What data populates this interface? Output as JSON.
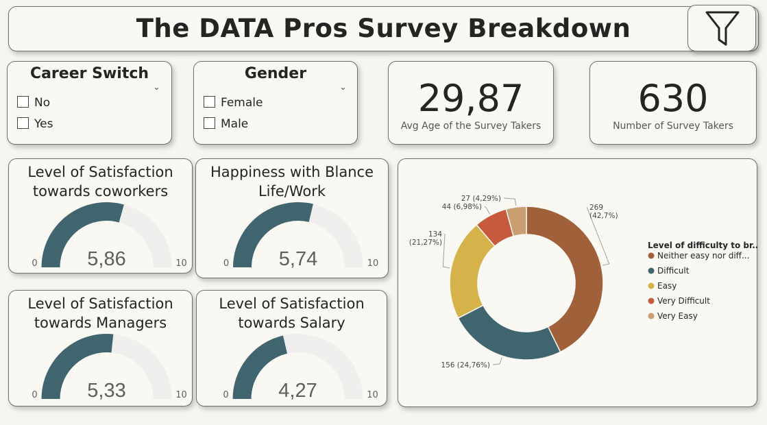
{
  "title": "The DATA Pros Survey Breakdown",
  "filter_icon": "filter-icon",
  "slicers": [
    {
      "title": "Career Switch",
      "options": [
        "No",
        "Yes"
      ]
    },
    {
      "title": "Gender",
      "options": [
        "Female",
        "Male"
      ]
    }
  ],
  "kpis": [
    {
      "value": "29,87",
      "label": "Avg Age of the Survey Takers"
    },
    {
      "value": "630",
      "label": "Number of Survey Takers"
    }
  ],
  "colors": {
    "gauge_fill": "#41656f",
    "gauge_track": "#f0efed",
    "neither": "#a0603a",
    "difficult": "#41656f",
    "easy": "#d6b24b",
    "very_difficult": "#c65a3c",
    "very_easy": "#c99f72"
  },
  "chart_data": [
    {
      "type": "gauge",
      "title": "Level of Satisfaction towards coworkers",
      "title_lines": [
        "Level of Satisfaction",
        "towards coworkers"
      ],
      "value": 5.86,
      "display": "5,86",
      "min": 0,
      "max": 10
    },
    {
      "type": "gauge",
      "title": "Happiness with Blance Life/Work",
      "title_lines": [
        "Happiness with Blance",
        "Life/Work"
      ],
      "value": 5.74,
      "display": "5,74",
      "min": 0,
      "max": 10
    },
    {
      "type": "gauge",
      "title": "Level of Satisfaction towards Managers",
      "title_lines": [
        "Level of Satisfaction",
        "towards Managers"
      ],
      "value": 5.33,
      "display": "5,33",
      "min": 0,
      "max": 10
    },
    {
      "type": "gauge",
      "title": "Level of Satisfaction towards Salary",
      "title_lines": [
        "Level of Satisfaction",
        "towards Salary"
      ],
      "value": 4.27,
      "display": "4,27",
      "min": 0,
      "max": 10
    },
    {
      "type": "pie",
      "legend_title": "Level of difficulty to br...",
      "legend_position": "right",
      "slices": [
        {
          "name": "Neither easy nor diff...",
          "value": 269,
          "label_value": "269",
          "label_pct": "(42,7%)",
          "color": "#a0603a"
        },
        {
          "name": "Difficult",
          "value": 156,
          "label_value": "156",
          "label_pct": "(24,76%)",
          "color": "#41656f"
        },
        {
          "name": "Easy",
          "value": 134,
          "label_value": "134",
          "label_pct": "(21,27%)",
          "color": "#d6b24b"
        },
        {
          "name": "Very Difficult",
          "value": 44,
          "label_value": "44",
          "label_pct": "(6,98%)",
          "color": "#c65a3c"
        },
        {
          "name": "Very Easy",
          "value": 27,
          "label_value": "27",
          "label_pct": "(4,29%)",
          "color": "#c99f72"
        }
      ]
    }
  ]
}
